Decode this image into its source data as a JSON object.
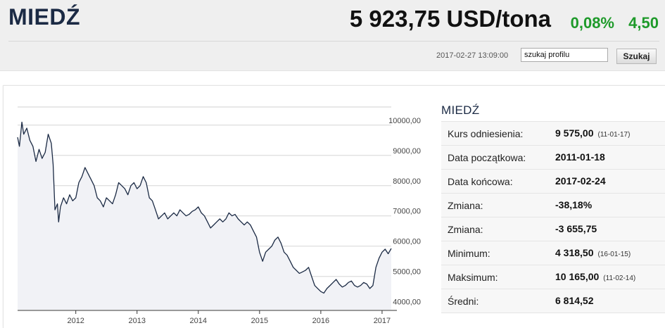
{
  "header": {
    "title": "MIEDŹ",
    "price": "5 923,75 USD/tona",
    "change_pct": "0,08%",
    "change_abs": "4,50",
    "timestamp": "2017-02-27 13:09:00",
    "search_value": "szukaj profilu",
    "search_button": "Szukaj",
    "up_color": "#1e9a2a"
  },
  "info": {
    "title": "MIEDŹ",
    "rows": [
      {
        "label": "Kurs odniesienia:",
        "value": "9 575,00",
        "date": "(11-01-17)"
      },
      {
        "label": "Data początkowa:",
        "value": "2011-01-18",
        "date": ""
      },
      {
        "label": "Data końcowa:",
        "value": "2017-02-24",
        "date": ""
      },
      {
        "label": "Zmiana:",
        "value": "-38,18%",
        "date": ""
      },
      {
        "label": "Zmiana:",
        "value": "-3 655,75",
        "date": ""
      },
      {
        "label": "Minimum:",
        "value": "4 318,50",
        "date": "(16-01-15)"
      },
      {
        "label": "Maksimum:",
        "value": "10 165,00",
        "date": "(11-02-14)"
      },
      {
        "label": "Średni:",
        "value": "6 814,52",
        "date": ""
      }
    ]
  },
  "chart_data": {
    "type": "area",
    "title": "",
    "xlabel": "",
    "ylabel": "",
    "xlim": [
      2011.05,
      2017.15
    ],
    "ylim": [
      3900,
      10600
    ],
    "y_ticks": [
      "4000,00",
      "5000,00",
      "6000,00",
      "7000,00",
      "8000,00",
      "9000,00",
      "10000,00"
    ],
    "y_tick_values": [
      4000,
      5000,
      6000,
      7000,
      8000,
      9000,
      10000
    ],
    "x_ticks": [
      "2012",
      "2013",
      "2014",
      "2015",
      "2016",
      "2017"
    ],
    "x_tick_values": [
      2012,
      2013,
      2014,
      2015,
      2016,
      2017
    ],
    "grid": true,
    "line_color": "#1b2a44",
    "fill_color": "#f1f2f6",
    "series": [
      {
        "x": [
          2011.05,
          2011.08,
          2011.12,
          2011.15,
          2011.2,
          2011.25,
          2011.3,
          2011.35,
          2011.4,
          2011.45,
          2011.5,
          2011.55,
          2011.6,
          2011.63,
          2011.66,
          2011.7,
          2011.72,
          2011.75,
          2011.8,
          2011.85,
          2011.9,
          2011.95,
          2012.0,
          2012.05,
          2012.1,
          2012.15,
          2012.2,
          2012.25,
          2012.3,
          2012.35,
          2012.4,
          2012.45,
          2012.5,
          2012.55,
          2012.6,
          2012.65,
          2012.7,
          2012.75,
          2012.8,
          2012.85,
          2012.9,
          2012.95,
          2013.0,
          2013.05,
          2013.1,
          2013.15,
          2013.2,
          2013.25,
          2013.3,
          2013.35,
          2013.4,
          2013.45,
          2013.5,
          2013.55,
          2013.6,
          2013.65,
          2013.7,
          2013.75,
          2013.8,
          2013.85,
          2013.9,
          2013.95,
          2014.0,
          2014.05,
          2014.1,
          2014.15,
          2014.2,
          2014.25,
          2014.3,
          2014.35,
          2014.4,
          2014.45,
          2014.5,
          2014.55,
          2014.6,
          2014.65,
          2014.7,
          2014.75,
          2014.8,
          2014.85,
          2014.9,
          2014.95,
          2015.0,
          2015.05,
          2015.1,
          2015.15,
          2015.2,
          2015.25,
          2015.3,
          2015.35,
          2015.4,
          2015.45,
          2015.5,
          2015.55,
          2015.6,
          2015.65,
          2015.7,
          2015.75,
          2015.8,
          2015.85,
          2015.9,
          2015.95,
          2016.0,
          2016.05,
          2016.1,
          2016.15,
          2016.2,
          2016.25,
          2016.3,
          2016.35,
          2016.4,
          2016.45,
          2016.5,
          2016.55,
          2016.6,
          2016.65,
          2016.7,
          2016.75,
          2016.8,
          2016.85,
          2016.9,
          2016.95,
          2017.0,
          2017.05,
          2017.1,
          2017.15
        ],
        "y": [
          9600,
          9300,
          10100,
          9700,
          9900,
          9500,
          9300,
          8800,
          9200,
          8900,
          9100,
          9700,
          9400,
          8700,
          7200,
          7400,
          6800,
          7300,
          7600,
          7400,
          7700,
          7500,
          7600,
          8100,
          8300,
          8600,
          8400,
          8200,
          8000,
          7600,
          7500,
          7300,
          7600,
          7500,
          7400,
          7700,
          8100,
          8000,
          7900,
          7700,
          8000,
          8100,
          7900,
          8000,
          8300,
          8100,
          7600,
          7500,
          7200,
          6900,
          7000,
          7100,
          6900,
          7000,
          7100,
          7000,
          7200,
          7100,
          7000,
          7050,
          7150,
          7200,
          7300,
          7100,
          7000,
          6800,
          6600,
          6700,
          6800,
          6900,
          6800,
          6900,
          7100,
          7000,
          7050,
          6900,
          6800,
          6700,
          6800,
          6700,
          6500,
          6300,
          5800,
          5500,
          5800,
          5900,
          6000,
          6200,
          6300,
          6100,
          5800,
          5700,
          5500,
          5300,
          5200,
          5100,
          5150,
          5200,
          5300,
          5000,
          4700,
          4600,
          4500,
          4450,
          4600,
          4700,
          4800,
          4900,
          4750,
          4650,
          4700,
          4800,
          4850,
          4700,
          4650,
          4700,
          4800,
          4750,
          4600,
          4700,
          5300,
          5600,
          5800,
          5900,
          5750,
          5923
        ]
      }
    ]
  }
}
